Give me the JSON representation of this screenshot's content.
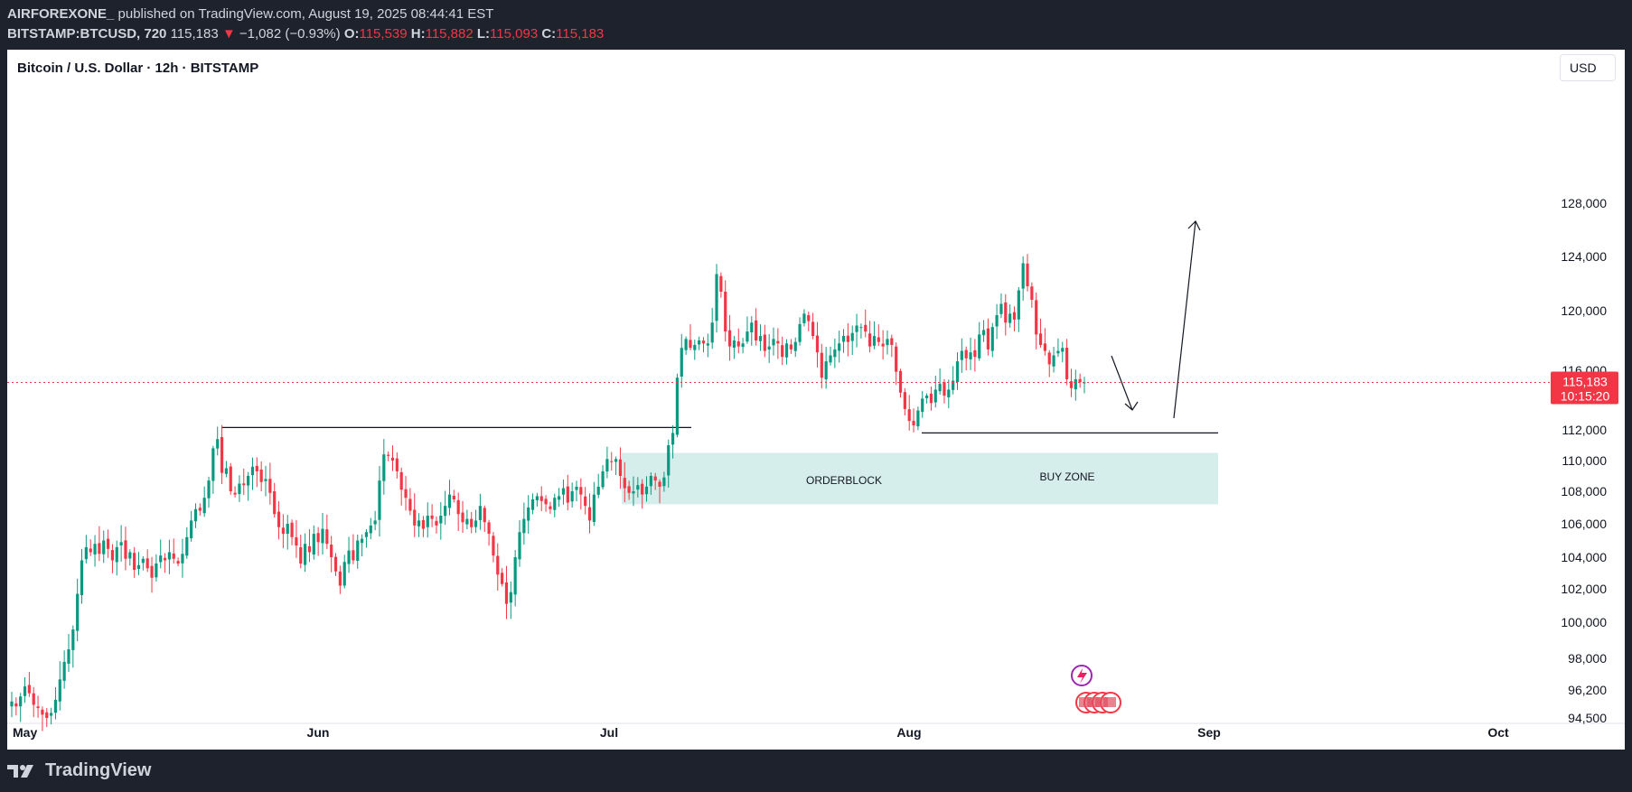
{
  "header": {
    "author": "AIRFOREXONE_",
    "published": " published on TradingView.com, August 19, 2025 08:44:41 EST",
    "symbol": "BITSTAMP:BTCUSD, 720",
    "last": "115,183",
    "change_arrow": "▼",
    "change": "−1,082 (−0.93%)",
    "o_label": "O:",
    "o": "115,539",
    "h_label": "H:",
    "h": "115,882",
    "l_label": "L:",
    "l": "115,093",
    "c_label": "C:",
    "c": "115,183"
  },
  "legend": {
    "title": "Bitcoin / U.S. Dollar · 12h · BITSTAMP"
  },
  "currency_button": "USD",
  "price_label": {
    "price": "115,183",
    "countdown": "10:15:20"
  },
  "footer": {
    "brand": "TradingView"
  },
  "colors": {
    "up": "#089981",
    "down": "#f23645",
    "zone": "#b2dfdb"
  },
  "chart_data": {
    "type": "candlestick",
    "x_axis_ticks": [
      "May",
      "Jun",
      "Jul",
      "Aug",
      "Sep",
      "Oct"
    ],
    "y_axis_ticks": [
      "128,000",
      "124,000",
      "120,000",
      "116,000",
      "112,000",
      "110,000",
      "108,000",
      "106,000",
      "104,000",
      "102,000",
      "100,000",
      "98,000",
      "96,200",
      "94,500"
    ],
    "y_range": [
      94500,
      131000
    ],
    "annotations": {
      "orderblock_label": "ORDERBLOCK",
      "buyzone_label": "BUY ZONE",
      "zone_top": 110500,
      "zone_bottom": 107200,
      "resistance_level": 111800,
      "support_level": 111800
    },
    "approx_closes": [
      95500,
      95200,
      95800,
      96400,
      96000,
      95300,
      95100,
      94700,
      94500,
      94800,
      95600,
      96800,
      97800,
      98500,
      99600,
      101700,
      103800,
      104600,
      104300,
      104800,
      104200,
      105000,
      104500,
      103800,
      104600,
      104900,
      103900,
      104300,
      103200,
      103500,
      103900,
      103300,
      102700,
      103600,
      104100,
      103800,
      104300,
      103900,
      103600,
      104200,
      105200,
      106200,
      106900,
      106800,
      107600,
      108700,
      110800,
      111400,
      109200,
      109500,
      108000,
      107800,
      108500,
      108400,
      109000,
      109600,
      109300,
      108600,
      108800,
      107900,
      106600,
      105800,
      105400,
      106000,
      105200,
      104700,
      103600,
      104800,
      104300,
      105400,
      104900,
      105700,
      104800,
      104000,
      103100,
      102200,
      103700,
      104400,
      103800,
      105000,
      105100,
      105500,
      105900,
      106200,
      108700,
      110400,
      110300,
      110000,
      109300,
      108100,
      107600,
      106800,
      105900,
      106200,
      105700,
      106500,
      106300,
      105900,
      106500,
      107100,
      107800,
      107500,
      106600,
      106100,
      106300,
      105800,
      106200,
      107100,
      106100,
      105400,
      104100,
      102900,
      102300,
      101100,
      101800,
      104000,
      105500,
      106300,
      107000,
      107500,
      107700,
      107400,
      107200,
      106900,
      107600,
      107700,
      108200,
      107300,
      108000,
      108300,
      107800,
      107100,
      106200,
      107800,
      108300,
      109300,
      110100,
      109900,
      110100,
      109000,
      108200,
      107900,
      108000,
      108400,
      107800,
      108300,
      109000,
      108700,
      108300,
      108900,
      111000,
      111800,
      115500,
      117500,
      118100,
      117500,
      117700,
      118000,
      117800,
      117800,
      119200,
      122700,
      121400,
      118600,
      117600,
      118000,
      117600,
      117800,
      118600,
      119200,
      118000,
      118300,
      117300,
      117600,
      118100,
      117800,
      116900,
      117800,
      117400,
      117900,
      119100,
      119800,
      119300,
      118300,
      117200,
      115500,
      116600,
      117000,
      117400,
      117800,
      118300,
      117900,
      118500,
      119000,
      118900,
      118600,
      117600,
      118300,
      117900,
      117600,
      118100,
      117700,
      115900,
      114500,
      113400,
      112600,
      112300,
      113300,
      114100,
      114300,
      113800,
      114700,
      115100,
      114300,
      114700,
      115300,
      116600,
      117300,
      116800,
      117200,
      116900,
      118400,
      118700,
      117400,
      118900,
      119700,
      120500,
      119200,
      119800,
      119400,
      121500,
      123500,
      121800,
      120800,
      118400,
      117700,
      117300,
      116400,
      117000,
      117300,
      117500,
      115400,
      114800,
      115400,
      115200,
      115183
    ]
  }
}
